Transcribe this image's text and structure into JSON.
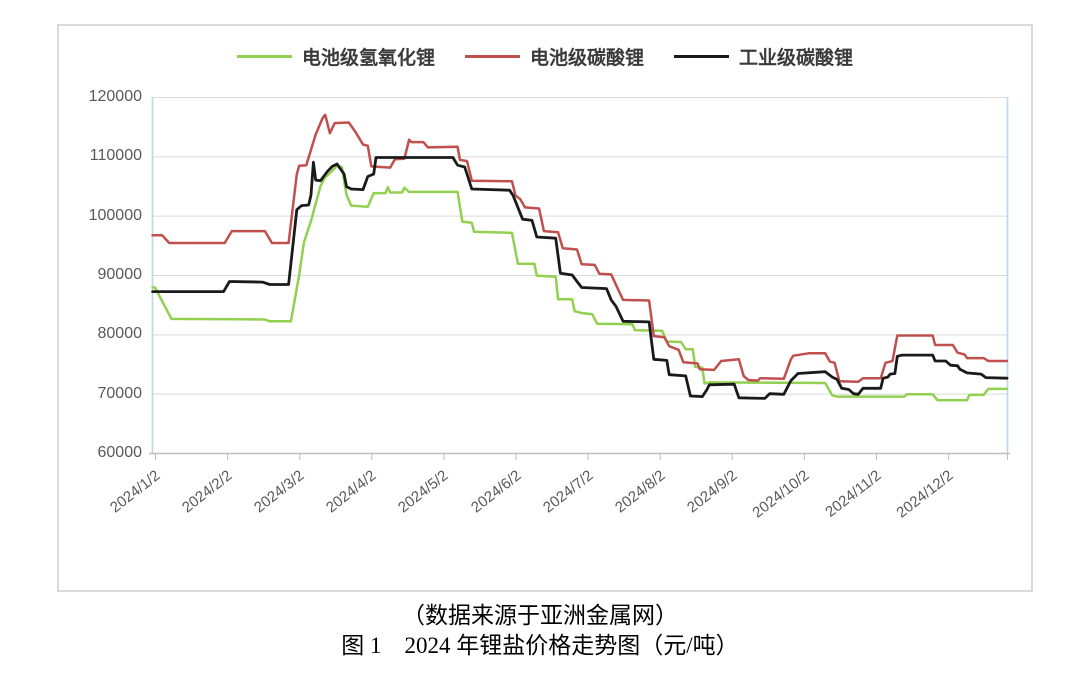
{
  "figure": {
    "caption_source": "（数据来源于亚洲金属网）",
    "caption_title": "图 1　2024 年锂盐价格走势图（元/吨）"
  },
  "chart_data": {
    "type": "line",
    "title": "2024 年锂盐价格走势图",
    "unit": "元/吨",
    "year": 2024,
    "grid": "horizontal",
    "legend_position": "top",
    "x_axis": {
      "tick_labels": [
        "2024/1/2",
        "2024/2/2",
        "2024/3/2",
        "2024/4/2",
        "2024/5/2",
        "2024/6/2",
        "2024/7/2",
        "2024/8/2",
        "2024/9/2",
        "2024/10/2",
        "2024/11/2",
        "2024/12/2"
      ]
    },
    "y_axis": {
      "min": 60000,
      "max": 120000,
      "step": 10000,
      "tick_labels": [
        "120000",
        "110000",
        "100000",
        "90000",
        "80000",
        "70000",
        "60000"
      ]
    },
    "series": [
      {
        "id": "battery-lithium-hydroxide",
        "name": "电池级氢氧化锂",
        "color": "#92d050",
        "points": [
          [
            "1/1",
            87900
          ],
          [
            "1/2",
            87900
          ],
          [
            "1/9",
            82600
          ],
          [
            "2/18",
            82500
          ],
          [
            "2/20",
            82200
          ],
          [
            "2/29",
            82200
          ],
          [
            "3/2",
            90000
          ],
          [
            "3/4",
            95500
          ],
          [
            "3/7",
            99100
          ],
          [
            "3/10",
            103500
          ],
          [
            "3/11",
            105000
          ],
          [
            "3/13",
            106500
          ],
          [
            "3/14",
            106800
          ],
          [
            "3/17",
            108000
          ],
          [
            "3/18",
            108400
          ],
          [
            "3/20",
            108200
          ],
          [
            "3/22",
            103500
          ],
          [
            "3/24",
            101700
          ],
          [
            "3/31",
            101500
          ],
          [
            "4/3",
            103800
          ],
          [
            "4/8",
            103800
          ],
          [
            "4/9",
            104800
          ],
          [
            "4/10",
            103900
          ],
          [
            "4/15",
            103900
          ],
          [
            "4/16",
            104700
          ],
          [
            "4/18",
            104000
          ],
          [
            "5/8",
            104000
          ],
          [
            "5/10",
            99000
          ],
          [
            "5/14",
            98800
          ],
          [
            "5/15",
            97300
          ],
          [
            "5/31",
            97100
          ],
          [
            "6/3",
            91900
          ],
          [
            "6/10",
            91900
          ],
          [
            "6/11",
            89900
          ],
          [
            "6/19",
            89700
          ],
          [
            "6/20",
            85900
          ],
          [
            "6/26",
            85900
          ],
          [
            "6/27",
            83900
          ],
          [
            "6/30",
            83600
          ],
          [
            "7/4",
            83400
          ],
          [
            "7/6",
            81800
          ],
          [
            "7/21",
            81700
          ],
          [
            "7/22",
            80700
          ],
          [
            "8/3",
            80600
          ],
          [
            "8/5",
            78800
          ],
          [
            "8/11",
            78700
          ],
          [
            "8/13",
            77500
          ],
          [
            "8/16",
            77500
          ],
          [
            "8/17",
            74500
          ],
          [
            "8/20",
            74400
          ],
          [
            "8/21",
            71700
          ],
          [
            "8/23",
            71900
          ],
          [
            "10/11",
            71800
          ],
          [
            "10/14",
            69700
          ],
          [
            "10/16",
            69500
          ],
          [
            "11/14",
            69500
          ],
          [
            "11/15",
            69900
          ],
          [
            "11/26",
            69900
          ],
          [
            "11/28",
            68900
          ],
          [
            "12/10",
            68900
          ],
          [
            "12/11",
            69800
          ],
          [
            "12/17",
            69800
          ],
          [
            "12/19",
            70800
          ],
          [
            "12/27",
            70800
          ]
        ]
      },
      {
        "id": "battery-lithium-carbonate",
        "name": "电池级碳酸锂",
        "color": "#c0504d",
        "points": [
          [
            "1/1",
            96700
          ],
          [
            "1/5",
            96700
          ],
          [
            "1/8",
            95400
          ],
          [
            "2/1",
            95400
          ],
          [
            "2/4",
            97400
          ],
          [
            "2/18",
            97400
          ],
          [
            "2/21",
            95400
          ],
          [
            "2/28",
            95400
          ],
          [
            "3/1",
            107000
          ],
          [
            "3/2",
            108400
          ],
          [
            "3/5",
            108500
          ],
          [
            "3/9",
            113700
          ],
          [
            "3/12",
            116500
          ],
          [
            "3/13",
            117000
          ],
          [
            "3/15",
            113900
          ],
          [
            "3/17",
            115600
          ],
          [
            "3/23",
            115700
          ],
          [
            "3/26",
            114000
          ],
          [
            "3/29",
            112000
          ],
          [
            "3/31",
            111800
          ],
          [
            "4/2",
            108300
          ],
          [
            "4/10",
            108100
          ],
          [
            "4/12",
            109500
          ],
          [
            "4/16",
            109600
          ],
          [
            "4/18",
            112800
          ],
          [
            "4/19",
            112400
          ],
          [
            "4/24",
            112400
          ],
          [
            "4/26",
            111500
          ],
          [
            "5/8",
            111600
          ],
          [
            "5/9",
            109400
          ],
          [
            "5/12",
            109200
          ],
          [
            "5/14",
            105900
          ],
          [
            "5/31",
            105800
          ],
          [
            "6/2",
            103400
          ],
          [
            "6/4",
            102800
          ],
          [
            "6/6",
            101400
          ],
          [
            "6/12",
            101200
          ],
          [
            "6/14",
            97400
          ],
          [
            "6/20",
            97200
          ],
          [
            "6/22",
            94500
          ],
          [
            "6/28",
            94300
          ],
          [
            "6/30",
            91800
          ],
          [
            "7/5",
            91700
          ],
          [
            "7/7",
            90200
          ],
          [
            "7/12",
            90100
          ],
          [
            "7/15",
            87500
          ],
          [
            "7/17",
            85800
          ],
          [
            "7/28",
            85700
          ],
          [
            "7/30",
            79700
          ],
          [
            "8/4",
            79500
          ],
          [
            "8/6",
            78000
          ],
          [
            "8/10",
            77400
          ],
          [
            "8/12",
            75300
          ],
          [
            "8/18",
            75100
          ],
          [
            "8/19",
            74100
          ],
          [
            "8/25",
            74000
          ],
          [
            "8/27",
            75000
          ],
          [
            "8/28",
            75500
          ],
          [
            "9/5",
            75800
          ],
          [
            "9/7",
            73000
          ],
          [
            "9/9",
            72300
          ],
          [
            "9/13",
            72200
          ],
          [
            "9/14",
            72600
          ],
          [
            "9/24",
            72500
          ],
          [
            "9/27",
            75800
          ],
          [
            "9/28",
            76400
          ],
          [
            "10/4",
            76800
          ],
          [
            "10/11",
            76800
          ],
          [
            "10/13",
            75400
          ],
          [
            "10/15",
            75200
          ],
          [
            "10/17",
            72100
          ],
          [
            "10/25",
            72000
          ],
          [
            "10/27",
            72600
          ],
          [
            "11/4",
            72600
          ],
          [
            "11/6",
            75200
          ],
          [
            "11/9",
            75500
          ],
          [
            "11/11",
            79800
          ],
          [
            "11/26",
            79800
          ],
          [
            "11/27",
            78200
          ],
          [
            "12/4",
            78200
          ],
          [
            "12/6",
            76900
          ],
          [
            "12/9",
            76600
          ],
          [
            "12/10",
            76000
          ],
          [
            "12/17",
            76000
          ],
          [
            "12/19",
            75500
          ],
          [
            "12/27",
            75500
          ]
        ]
      },
      {
        "id": "industrial-lithium-carbonate",
        "name": "工业级碳酸锂",
        "color": "#1a1a1a",
        "points": [
          [
            "1/1",
            87200
          ],
          [
            "1/31",
            87200
          ],
          [
            "2/3",
            88900
          ],
          [
            "2/17",
            88800
          ],
          [
            "2/20",
            88400
          ],
          [
            "2/28",
            88400
          ],
          [
            "3/1",
            101000
          ],
          [
            "3/3",
            101700
          ],
          [
            "3/6",
            101800
          ],
          [
            "3/7",
            103500
          ],
          [
            "3/8",
            109000
          ],
          [
            "3/9",
            106000
          ],
          [
            "3/11",
            105900
          ],
          [
            "3/14",
            107500
          ],
          [
            "3/16",
            108300
          ],
          [
            "3/18",
            108700
          ],
          [
            "3/21",
            107000
          ],
          [
            "3/22",
            104900
          ],
          [
            "3/24",
            104500
          ],
          [
            "3/29",
            104400
          ],
          [
            "3/31",
            106600
          ],
          [
            "4/3",
            107000
          ],
          [
            "4/4",
            109800
          ],
          [
            "5/6",
            109800
          ],
          [
            "5/8",
            108500
          ],
          [
            "5/11",
            108200
          ],
          [
            "5/14",
            104500
          ],
          [
            "5/30",
            104300
          ],
          [
            "6/1",
            103400
          ],
          [
            "6/5",
            99400
          ],
          [
            "6/9",
            99200
          ],
          [
            "6/11",
            96400
          ],
          [
            "6/19",
            96200
          ],
          [
            "6/21",
            90300
          ],
          [
            "6/26",
            90000
          ],
          [
            "6/28",
            88900
          ],
          [
            "6/30",
            87900
          ],
          [
            "7/10",
            87700
          ],
          [
            "7/12",
            85800
          ],
          [
            "7/14",
            84700
          ],
          [
            "7/17",
            82200
          ],
          [
            "7/28",
            82100
          ],
          [
            "7/30",
            75800
          ],
          [
            "8/5",
            75600
          ],
          [
            "8/6",
            73200
          ],
          [
            "8/13",
            73000
          ],
          [
            "8/15",
            69600
          ],
          [
            "8/20",
            69500
          ],
          [
            "8/22",
            70700
          ],
          [
            "8/23",
            71500
          ],
          [
            "9/3",
            71600
          ],
          [
            "9/5",
            69300
          ],
          [
            "9/16",
            69200
          ],
          [
            "9/18",
            70000
          ],
          [
            "9/24",
            69900
          ],
          [
            "9/27",
            72200
          ],
          [
            "9/30",
            73400
          ],
          [
            "10/11",
            73700
          ],
          [
            "10/14",
            72800
          ],
          [
            "10/16",
            72400
          ],
          [
            "10/18",
            70900
          ],
          [
            "10/21",
            70700
          ],
          [
            "10/23",
            70000
          ],
          [
            "10/25",
            69900
          ],
          [
            "10/27",
            70900
          ],
          [
            "11/4",
            70900
          ],
          [
            "11/5",
            72600
          ],
          [
            "11/7",
            72800
          ],
          [
            "11/8",
            73300
          ],
          [
            "11/10",
            73400
          ],
          [
            "11/11",
            76300
          ],
          [
            "11/13",
            76500
          ],
          [
            "11/26",
            76500
          ],
          [
            "11/27",
            75500
          ],
          [
            "12/1",
            75500
          ],
          [
            "12/3",
            74800
          ],
          [
            "12/6",
            74700
          ],
          [
            "12/7",
            74100
          ],
          [
            "12/10",
            73500
          ],
          [
            "12/16",
            73300
          ],
          [
            "12/18",
            72700
          ],
          [
            "12/27",
            72600
          ]
        ]
      }
    ],
    "colors": {
      "gridline": "#d9d9d9",
      "axis_line": "#bfbfbf",
      "plot_side_border": "#bdd7ee",
      "axis_text": "#595959",
      "frame_border": "#d9d9d9"
    }
  }
}
